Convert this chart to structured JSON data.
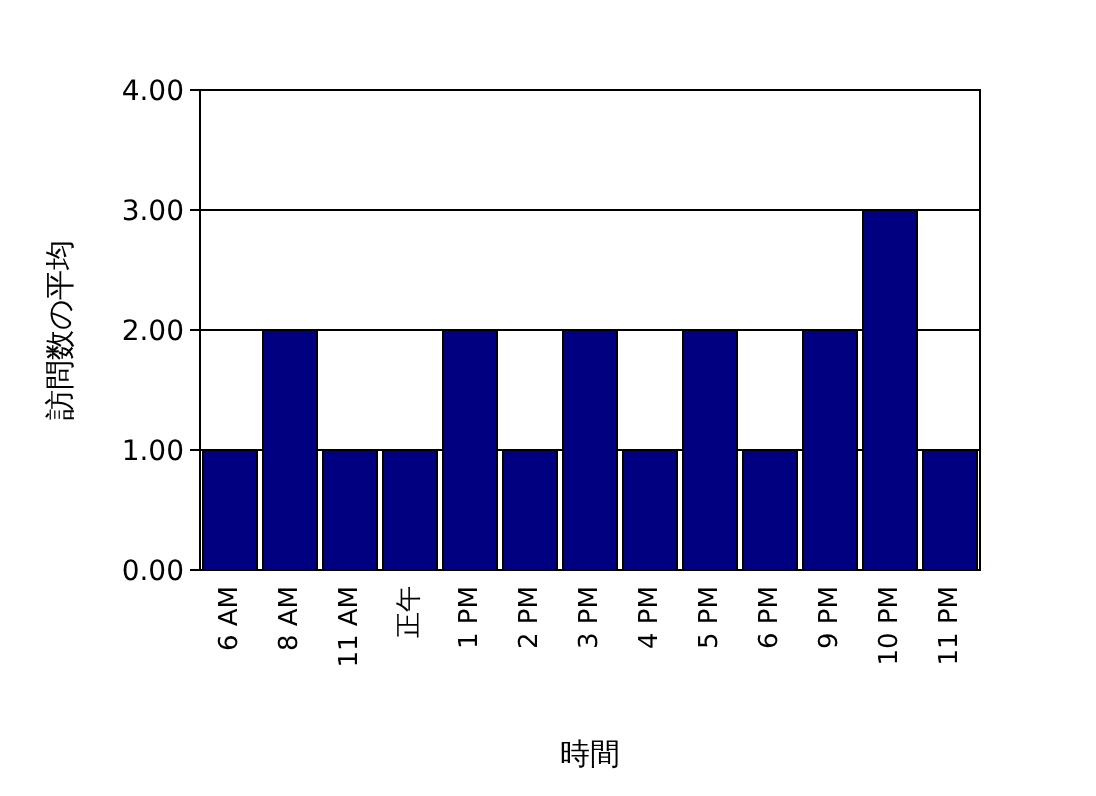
{
  "chart_data": {
    "type": "bar",
    "xlabel": "時間",
    "ylabel": "訪問数の平均",
    "categories": [
      "6 AM",
      "8 AM",
      "11 AM",
      "正午",
      "1 PM",
      "2 PM",
      "3 PM",
      "4 PM",
      "5 PM",
      "6 PM",
      "9 PM",
      "10 PM",
      "11 PM"
    ],
    "values": [
      1,
      2,
      1,
      1,
      2,
      1,
      2,
      1,
      2,
      1,
      2,
      3,
      1
    ],
    "color": "#000080",
    "ylim": [
      0,
      4
    ],
    "yticks": [
      {
        "value": 0,
        "label": "0.00"
      },
      {
        "value": 1,
        "label": "1.00"
      },
      {
        "value": 2,
        "label": "2.00"
      },
      {
        "value": 3,
        "label": "3.00"
      },
      {
        "value": 4,
        "label": "4.00"
      }
    ],
    "grid": "y"
  }
}
